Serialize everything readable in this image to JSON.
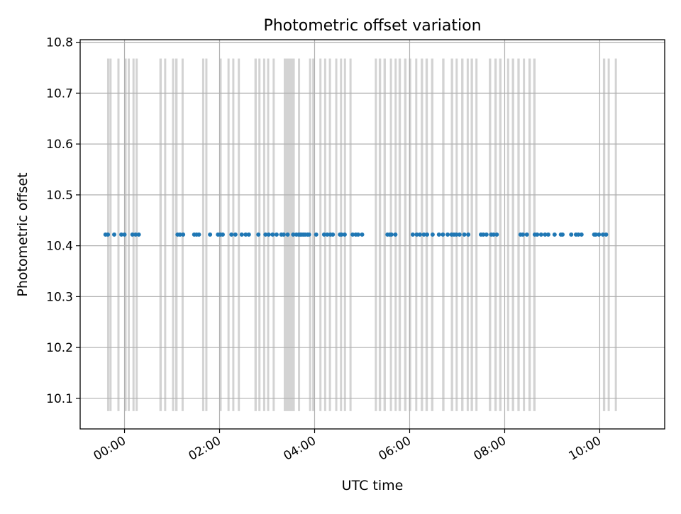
{
  "chart_data": {
    "type": "scatter",
    "title": "Photometric offset variation",
    "xlabel": "UTC time",
    "ylabel": "Photometric offset",
    "xlim": [
      "23:04",
      "11:22"
    ],
    "ylim": [
      10.04,
      10.805
    ],
    "x_ticks": [
      "00:00",
      "02:00",
      "04:00",
      "06:00",
      "08:00",
      "10:00"
    ],
    "y_ticks": [
      "10.1",
      "10.2",
      "10.3",
      "10.4",
      "10.5",
      "10.6",
      "10.7",
      "10.8"
    ],
    "grid": true,
    "colors": {
      "points": "#1f77b4",
      "bands": "#d3d3d3",
      "grid": "#b0b0b0"
    },
    "band_range": [
      10.075,
      10.768
    ],
    "offset_value": 10.422,
    "points_x": [
      "23:36",
      "23:39",
      "23:47",
      "23:56",
      "00:00",
      "00:10",
      "00:14",
      "00:18",
      "01:07",
      "01:10",
      "01:14",
      "01:28",
      "01:31",
      "01:34",
      "01:48",
      "01:58",
      "02:01",
      "02:04",
      "02:15",
      "02:20",
      "02:28",
      "02:33",
      "02:37",
      "02:49",
      "02:58",
      "03:02",
      "03:07",
      "03:12",
      "03:18",
      "03:21",
      "03:26",
      "03:33",
      "03:37",
      "03:40",
      "03:42",
      "03:44",
      "03:46",
      "03:48",
      "03:51",
      "03:53",
      "04:02",
      "04:12",
      "04:16",
      "04:20",
      "04:23",
      "04:32",
      "04:34",
      "04:38",
      "04:48",
      "04:52",
      "04:55",
      "05:00",
      "05:32",
      "05:35",
      "05:37",
      "05:42",
      "06:04",
      "06:09",
      "06:13",
      "06:18",
      "06:22",
      "06:29",
      "06:37",
      "06:42",
      "06:48",
      "06:53",
      "06:56",
      "06:59",
      "07:03",
      "07:09",
      "07:14",
      "07:30",
      "07:33",
      "07:37",
      "07:43",
      "07:46",
      "07:50",
      "08:20",
      "08:23",
      "08:28",
      "08:38",
      "08:41",
      "08:46",
      "08:51",
      "08:55",
      "09:03",
      "09:11",
      "09:13",
      "09:24",
      "09:30",
      "09:33",
      "09:37",
      "09:53",
      "09:55",
      "09:59",
      "10:04",
      "10:08"
    ],
    "bands": [
      [
        "23:38",
        "23:39"
      ],
      [
        "23:41",
        "23:43"
      ],
      [
        "23:51",
        "23:53"
      ],
      [
        "00:00",
        "00:02"
      ],
      [
        "00:04",
        "00:06"
      ],
      [
        "00:10",
        "00:12"
      ],
      [
        "00:14",
        "00:16"
      ],
      [
        "00:44",
        "00:47"
      ],
      [
        "00:50",
        "00:52"
      ],
      [
        "01:00",
        "01:02"
      ],
      [
        "01:04",
        "01:07"
      ],
      [
        "01:12",
        "01:14"
      ],
      [
        "01:38",
        "01:40"
      ],
      [
        "01:42",
        "01:44"
      ],
      [
        "02:00",
        "02:02"
      ],
      [
        "02:10",
        "02:12"
      ],
      [
        "02:16",
        "02:18"
      ],
      [
        "02:23",
        "02:25"
      ],
      [
        "02:44",
        "02:47"
      ],
      [
        "02:49",
        "02:51"
      ],
      [
        "02:55",
        "02:57"
      ],
      [
        "03:00",
        "03:02"
      ],
      [
        "03:07",
        "03:09"
      ],
      [
        "03:21",
        "03:35"
      ],
      [
        "03:39",
        "03:41"
      ],
      [
        "03:53",
        "03:55"
      ],
      [
        "03:57",
        "04:00"
      ],
      [
        "04:06",
        "04:08"
      ],
      [
        "04:12",
        "04:14"
      ],
      [
        "04:18",
        "04:20"
      ],
      [
        "04:26",
        "04:28"
      ],
      [
        "04:32",
        "04:34"
      ],
      [
        "04:37",
        "04:39"
      ],
      [
        "04:44",
        "04:46"
      ],
      [
        "05:16",
        "05:18"
      ],
      [
        "05:21",
        "05:24"
      ],
      [
        "05:27",
        "05:30"
      ],
      [
        "05:35",
        "05:37"
      ],
      [
        "05:41",
        "05:43"
      ],
      [
        "05:46",
        "05:49"
      ],
      [
        "05:53",
        "05:56"
      ],
      [
        "05:59",
        "06:02"
      ],
      [
        "06:07",
        "06:09"
      ],
      [
        "06:14",
        "06:17"
      ],
      [
        "06:20",
        "06:23"
      ],
      [
        "06:27",
        "06:30"
      ],
      [
        "06:41",
        "06:44"
      ],
      [
        "06:52",
        "06:55"
      ],
      [
        "06:58",
        "07:00"
      ],
      [
        "07:05",
        "07:08"
      ],
      [
        "07:12",
        "07:14"
      ],
      [
        "07:17",
        "07:20"
      ],
      [
        "07:23",
        "07:25"
      ],
      [
        "07:40",
        "07:43"
      ],
      [
        "07:47",
        "07:50"
      ],
      [
        "07:53",
        "07:56"
      ],
      [
        "08:03",
        "08:05"
      ],
      [
        "08:09",
        "08:12"
      ],
      [
        "08:16",
        "08:19"
      ],
      [
        "08:23",
        "08:25"
      ],
      [
        "08:30",
        "08:33"
      ],
      [
        "08:36",
        "08:39"
      ],
      [
        "10:04",
        "10:07"
      ],
      [
        "10:10",
        "10:12"
      ],
      [
        "10:19",
        "10:21"
      ]
    ]
  }
}
